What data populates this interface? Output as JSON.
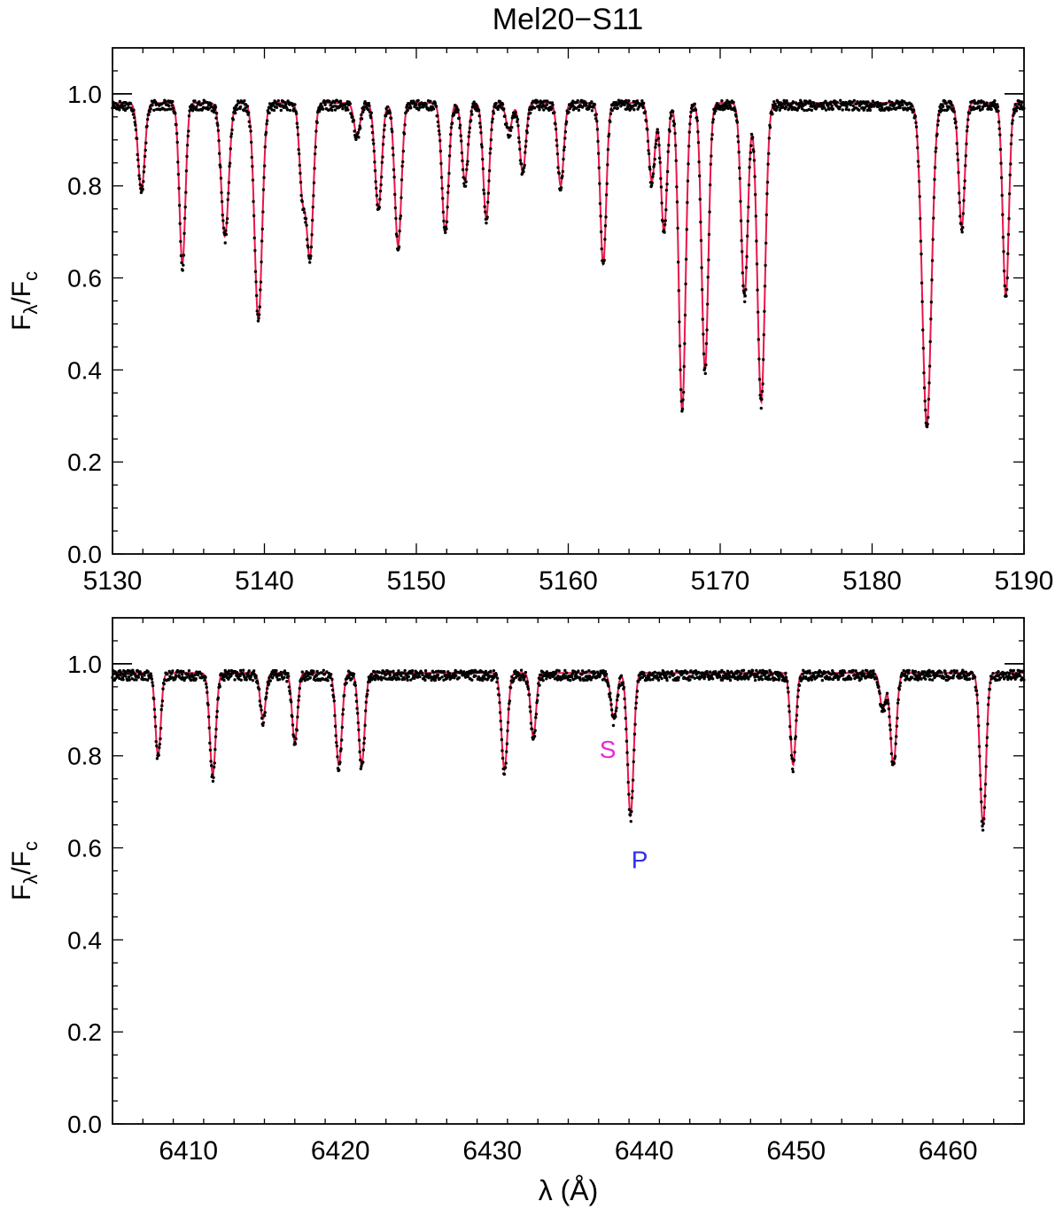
{
  "title": "Mel20−S11",
  "colors": {
    "model": "#e8174a",
    "observed": "#000000",
    "secondary_marker": "#e62ad8",
    "primary_marker": "#2f2ff0",
    "axes": "#000000"
  },
  "chart_data": [
    {
      "type": "line",
      "title": "Mel20−S11",
      "xlabel": "",
      "ylabel_main": "F",
      "ylabel_sub1": "λ",
      "ylabel_slash": "/F",
      "ylabel_sub2": "c",
      "xlim": [
        5130,
        5190
      ],
      "ylim": [
        0.0,
        1.1
      ],
      "xticks": [
        5130,
        5140,
        5150,
        5160,
        5170,
        5180,
        5190
      ],
      "xtick_labels": [
        "5130",
        "5140",
        "5150",
        "5160",
        "5170",
        "5180",
        "5190"
      ],
      "yticks": [
        0.0,
        0.2,
        0.4,
        0.6,
        0.8,
        1.0
      ],
      "ytick_labels": [
        "0.0",
        "0.2",
        "0.4",
        "0.6",
        "0.8",
        "1.0"
      ],
      "continuum_level": 1.0,
      "series": [
        {
          "role": "observed spectrum (dots)"
        },
        {
          "role": "synthetic model (line)"
        }
      ],
      "absorption_lines": [
        {
          "x": 5131.9,
          "depth": 0.19,
          "w": 0.22
        },
        {
          "x": 5134.6,
          "depth": 0.35,
          "w": 0.2
        },
        {
          "x": 5137.4,
          "depth": 0.29,
          "w": 0.25
        },
        {
          "x": 5139.6,
          "depth": 0.47,
          "w": 0.25
        },
        {
          "x": 5142.5,
          "depth": 0.19,
          "w": 0.2
        },
        {
          "x": 5143.0,
          "depth": 0.33,
          "w": 0.22
        },
        {
          "x": 5146.1,
          "depth": 0.07,
          "w": 0.2
        },
        {
          "x": 5147.5,
          "depth": 0.23,
          "w": 0.22
        },
        {
          "x": 5148.8,
          "depth": 0.31,
          "w": 0.22
        },
        {
          "x": 5151.9,
          "depth": 0.28,
          "w": 0.22
        },
        {
          "x": 5153.2,
          "depth": 0.17,
          "w": 0.2
        },
        {
          "x": 5154.6,
          "depth": 0.25,
          "w": 0.2
        },
        {
          "x": 5156.1,
          "depth": 0.06,
          "w": 0.2
        },
        {
          "x": 5157.0,
          "depth": 0.15,
          "w": 0.2
        },
        {
          "x": 5159.5,
          "depth": 0.18,
          "w": 0.2
        },
        {
          "x": 5162.3,
          "depth": 0.35,
          "w": 0.2
        },
        {
          "x": 5165.5,
          "depth": 0.17,
          "w": 0.2
        },
        {
          "x": 5166.3,
          "depth": 0.28,
          "w": 0.2
        },
        {
          "x": 5167.5,
          "depth": 0.67,
          "w": 0.22
        },
        {
          "x": 5169.0,
          "depth": 0.58,
          "w": 0.22
        },
        {
          "x": 5171.6,
          "depth": 0.42,
          "w": 0.22
        },
        {
          "x": 5172.7,
          "depth": 0.65,
          "w": 0.25
        },
        {
          "x": 5183.6,
          "depth": 0.7,
          "w": 0.3
        },
        {
          "x": 5185.9,
          "depth": 0.27,
          "w": 0.2
        },
        {
          "x": 5188.8,
          "depth": 0.42,
          "w": 0.2
        }
      ],
      "annotations": []
    },
    {
      "type": "line",
      "xlabel": "λ (Å)",
      "ylabel_main": "F",
      "ylabel_sub1": "λ",
      "ylabel_slash": "/F",
      "ylabel_sub2": "c",
      "xlim": [
        6405,
        6465
      ],
      "ylim": [
        0.0,
        1.1
      ],
      "xticks": [
        6410,
        6420,
        6430,
        6440,
        6450,
        6460
      ],
      "xtick_labels": [
        "6410",
        "6420",
        "6430",
        "6440",
        "6450",
        "6460"
      ],
      "yticks": [
        0.0,
        0.2,
        0.4,
        0.6,
        0.8,
        1.0
      ],
      "ytick_labels": [
        "0.0",
        "0.2",
        "0.4",
        "0.6",
        "0.8",
        "1.0"
      ],
      "continuum_level": 1.0,
      "series": [
        {
          "role": "observed spectrum (dots)"
        },
        {
          "role": "synthetic model (line)"
        }
      ],
      "absorption_lines": [
        {
          "x": 6408.0,
          "depth": 0.18,
          "w": 0.18
        },
        {
          "x": 6411.6,
          "depth": 0.22,
          "w": 0.2
        },
        {
          "x": 6414.9,
          "depth": 0.1,
          "w": 0.18
        },
        {
          "x": 6417.0,
          "depth": 0.15,
          "w": 0.18
        },
        {
          "x": 6419.9,
          "depth": 0.2,
          "w": 0.2
        },
        {
          "x": 6421.4,
          "depth": 0.2,
          "w": 0.2
        },
        {
          "x": 6430.8,
          "depth": 0.21,
          "w": 0.2
        },
        {
          "x": 6432.7,
          "depth": 0.14,
          "w": 0.18
        },
        {
          "x": 6438.0,
          "depth": 0.1,
          "w": 0.2
        },
        {
          "x": 6439.1,
          "depth": 0.31,
          "w": 0.2
        },
        {
          "x": 6449.8,
          "depth": 0.2,
          "w": 0.18
        },
        {
          "x": 6455.7,
          "depth": 0.08,
          "w": 0.18
        },
        {
          "x": 6456.4,
          "depth": 0.2,
          "w": 0.2
        },
        {
          "x": 6462.3,
          "depth": 0.33,
          "w": 0.2
        }
      ],
      "annotations": [
        {
          "text": "S",
          "x": 6437.6,
          "y": 0.815,
          "color": "#e62ad8"
        },
        {
          "text": "P",
          "x": 6439.7,
          "y": 0.575,
          "color": "#2f2ff0"
        }
      ]
    }
  ]
}
